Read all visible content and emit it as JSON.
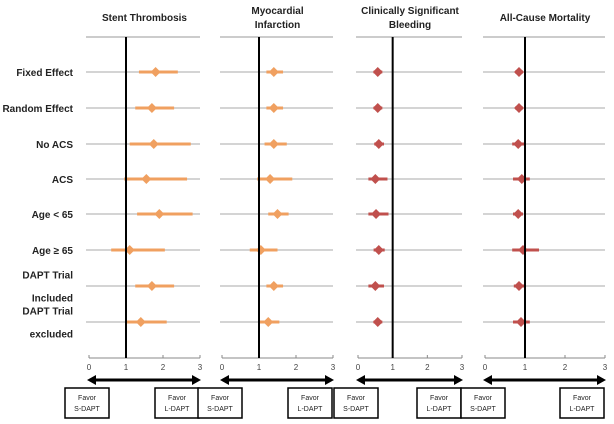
{
  "chart_data": {
    "type": "forest",
    "row_labels": [
      [
        "Fixed Effect"
      ],
      [
        "Random Effect"
      ],
      [
        "No ACS"
      ],
      [
        "ACS"
      ],
      [
        "Age < 65"
      ],
      [
        "Age ≥ 65"
      ],
      [
        "DAPT Trial",
        "Included"
      ],
      [
        "DAPT Trial",
        "excluded"
      ]
    ],
    "reference_line": 1,
    "xlim": [
      0,
      3
    ],
    "xticks": [
      "0",
      "1",
      "2",
      "3"
    ],
    "favor_left": [
      "Favor",
      "S-DAPT"
    ],
    "favor_right": [
      "Favor",
      "L-DAPT"
    ],
    "panels": [
      {
        "title": [
          "Stent Thrombosis"
        ],
        "color": "#f0a060",
        "estimates": [
          1.8,
          1.7,
          1.75,
          1.55,
          1.9,
          1.1,
          1.7,
          1.4
        ],
        "lower": [
          1.35,
          1.25,
          1.1,
          0.95,
          1.3,
          0.6,
          1.25,
          1.0
        ],
        "upper": [
          2.4,
          2.3,
          2.75,
          2.65,
          2.8,
          2.05,
          2.3,
          2.1
        ]
      },
      {
        "title": [
          "Myocardial",
          "Infarction"
        ],
        "color": "#f0a060",
        "estimates": [
          1.4,
          1.4,
          1.4,
          1.3,
          1.5,
          1.05,
          1.4,
          1.25
        ],
        "lower": [
          1.2,
          1.2,
          1.15,
          0.95,
          1.25,
          0.75,
          1.2,
          1.0
        ],
        "upper": [
          1.65,
          1.65,
          1.75,
          1.9,
          1.8,
          1.5,
          1.65,
          1.55
        ]
      },
      {
        "title": [
          "Clinically Significant",
          "Bleeding"
        ],
        "color": "#c0504d",
        "estimates": [
          0.57,
          0.57,
          0.6,
          0.5,
          0.52,
          0.6,
          0.5,
          0.57
        ],
        "lower": [
          0.45,
          0.45,
          0.47,
          0.3,
          0.3,
          0.45,
          0.3,
          0.45
        ],
        "upper": [
          0.7,
          0.7,
          0.75,
          0.85,
          0.88,
          0.77,
          0.75,
          0.7
        ]
      },
      {
        "title": [
          "All-Cause Mortality"
        ],
        "color": "#c0504d",
        "estimates": [
          0.85,
          0.85,
          0.83,
          0.92,
          0.83,
          0.95,
          0.85,
          0.9
        ],
        "lower": [
          0.75,
          0.75,
          0.68,
          0.7,
          0.7,
          0.68,
          0.72,
          0.7
        ],
        "upper": [
          0.95,
          0.95,
          1.0,
          1.12,
          0.95,
          1.35,
          0.98,
          1.12
        ]
      }
    ]
  }
}
